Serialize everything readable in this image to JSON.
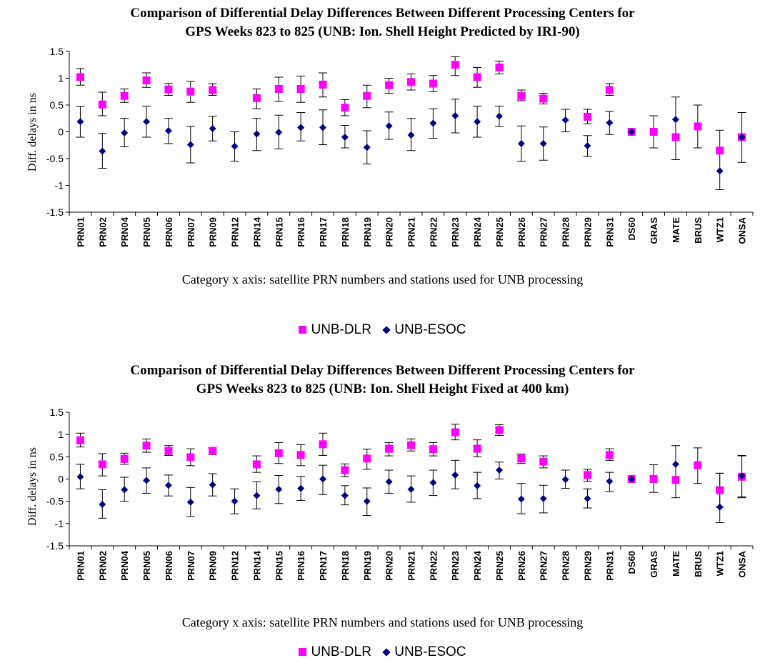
{
  "legend": {
    "series1": "UNB-DLR",
    "series2": "UNB-ESOC"
  },
  "colors": {
    "dlr": "#ff00ff",
    "esoc": "#000080",
    "axis": "#000000"
  },
  "chart_data": [
    {
      "type": "scatter",
      "title_line1": "Comparison of Differential Delay Differences Between Different Processing Centers for",
      "title_line2": "GPS Weeks 823 to 825 (UNB: Ion. Shell Height Predicted by IRI-90)",
      "xlabel": "Category x axis: satellite PRN numbers and stations used for UNB processing",
      "ylabel": "Diff. delays in ns",
      "ylim": [
        -1.5,
        1.5
      ],
      "yticks": [
        "1.5",
        "1",
        "0.5",
        "0",
        "-0.5",
        "-1",
        "-1.5"
      ],
      "grid": false,
      "legend_position": "bottom",
      "categories": [
        "PRN01",
        "PRN02",
        "PRN04",
        "PRN05",
        "PRN06",
        "PRN07",
        "PRN09",
        "PRN12",
        "PRN14",
        "PRN15",
        "PRN16",
        "PRN17",
        "PRN18",
        "PRN19",
        "PRN20",
        "PRN21",
        "PRN22",
        "PRN23",
        "PRN24",
        "PRN25",
        "PRN26",
        "PRN27",
        "PRN28",
        "PRN29",
        "PRN31",
        "DS60",
        "GRAS",
        "MATE",
        "BRUS",
        "WTZ1",
        "ONSA"
      ],
      "series": [
        {
          "name": "UNB-DLR",
          "values": [
            1.02,
            0.51,
            0.67,
            0.96,
            0.79,
            0.75,
            0.78,
            null,
            0.63,
            0.8,
            0.8,
            0.88,
            0.45,
            0.67,
            0.87,
            0.93,
            0.9,
            1.25,
            1.02,
            1.2,
            0.67,
            0.62,
            null,
            0.28,
            0.78,
            0.0,
            0.0,
            -0.1,
            0.1,
            -0.35,
            -0.1
          ],
          "err_low": [
            0.87,
            0.3,
            0.55,
            0.83,
            0.68,
            0.55,
            0.68,
            null,
            0.43,
            0.57,
            0.55,
            0.65,
            0.3,
            0.45,
            0.72,
            0.78,
            0.75,
            1.05,
            0.83,
            1.08,
            0.58,
            0.52,
            null,
            0.15,
            0.68,
            null,
            -0.3,
            -0.52,
            -0.3,
            null,
            null
          ],
          "err_high": [
            1.18,
            0.74,
            0.8,
            1.1,
            0.9,
            0.94,
            0.9,
            null,
            0.8,
            1.02,
            1.04,
            1.1,
            0.6,
            0.87,
            1.0,
            1.08,
            1.05,
            1.4,
            1.2,
            1.32,
            0.78,
            0.72,
            null,
            0.42,
            0.9,
            null,
            0.3,
            0.65,
            0.5,
            null,
            null
          ]
        },
        {
          "name": "UNB-ESOC",
          "values": [
            0.19,
            -0.36,
            -0.02,
            0.19,
            0.02,
            -0.24,
            0.06,
            -0.27,
            -0.04,
            -0.01,
            0.08,
            0.08,
            -0.1,
            -0.29,
            0.11,
            -0.06,
            0.16,
            0.3,
            0.19,
            0.29,
            -0.22,
            -0.22,
            0.22,
            -0.26,
            0.17,
            0.0,
            null,
            0.23,
            null,
            -0.73,
            -0.1
          ],
          "err_low": [
            -0.1,
            -0.68,
            -0.28,
            -0.1,
            -0.22,
            -0.58,
            -0.17,
            -0.55,
            -0.35,
            -0.32,
            -0.17,
            -0.24,
            -0.3,
            -0.6,
            -0.14,
            -0.35,
            -0.12,
            -0.02,
            -0.1,
            0.1,
            -0.55,
            -0.53,
            0.0,
            -0.46,
            -0.05,
            null,
            null,
            null,
            null,
            -1.08,
            -0.57
          ],
          "err_high": [
            0.47,
            -0.03,
            0.25,
            0.48,
            0.25,
            0.1,
            0.29,
            0.0,
            0.25,
            0.31,
            0.36,
            0.41,
            0.12,
            0.02,
            0.37,
            0.25,
            0.43,
            0.61,
            0.48,
            0.48,
            0.11,
            0.09,
            0.42,
            -0.07,
            0.38,
            null,
            null,
            null,
            null,
            0.03,
            0.36
          ]
        }
      ]
    },
    {
      "type": "scatter",
      "title_line1": "Comparison of Differential Delay Differences Between Different Processing Centers for",
      "title_line2": "GPS Weeks 823 to 825 (UNB: Ion. Shell Height Fixed at 400 km)",
      "xlabel": "Category x axis: satellite PRN numbers and stations used for UNB processing",
      "ylabel": "Diff. delays in ns",
      "ylim": [
        -1.5,
        1.5
      ],
      "yticks": [
        "1.5",
        "1",
        "0.5",
        "0",
        "-0.5",
        "-1",
        "-1.5"
      ],
      "grid": false,
      "legend_position": "bottom",
      "categories": [
        "PRN01",
        "PRN02",
        "PRN04",
        "PRN05",
        "PRN06",
        "PRN07",
        "PRN09",
        "PRN12",
        "PRN14",
        "PRN15",
        "PRN16",
        "PRN17",
        "PRN18",
        "PRN19",
        "PRN20",
        "PRN21",
        "PRN22",
        "PRN23",
        "PRN24",
        "PRN25",
        "PRN26",
        "PRN27",
        "PRN28",
        "PRN29",
        "PRN31",
        "DS60",
        "GRAS",
        "MATE",
        "BRUS",
        "WTZ1",
        "ONSA"
      ],
      "series": [
        {
          "name": "UNB-DLR",
          "values": [
            0.87,
            0.33,
            0.45,
            0.75,
            0.63,
            0.49,
            0.63,
            null,
            0.33,
            0.58,
            0.54,
            0.78,
            0.2,
            0.46,
            0.68,
            0.76,
            0.67,
            1.05,
            0.68,
            1.1,
            0.46,
            0.39,
            null,
            0.09,
            0.54,
            0.0,
            0.0,
            -0.02,
            0.31,
            -0.25,
            0.05
          ],
          "err_low": [
            0.72,
            0.07,
            0.33,
            0.6,
            0.53,
            0.3,
            0.55,
            null,
            0.15,
            0.35,
            0.3,
            0.53,
            0.05,
            0.22,
            0.52,
            0.63,
            0.52,
            0.88,
            0.5,
            0.98,
            0.35,
            0.25,
            null,
            -0.05,
            0.42,
            null,
            -0.3,
            -0.42,
            -0.1,
            -0.63,
            -0.42
          ],
          "err_high": [
            1.03,
            0.57,
            0.58,
            0.9,
            0.75,
            0.68,
            0.7,
            null,
            0.52,
            0.82,
            0.77,
            1.03,
            0.34,
            0.67,
            0.82,
            0.9,
            0.82,
            1.23,
            0.88,
            1.22,
            0.56,
            0.52,
            null,
            0.22,
            0.68,
            null,
            0.32,
            0.75,
            0.7,
            0.13,
            0.53
          ]
        },
        {
          "name": "UNB-ESOC",
          "values": [
            0.05,
            -0.57,
            -0.24,
            -0.03,
            -0.14,
            -0.52,
            -0.13,
            -0.5,
            -0.37,
            -0.23,
            -0.21,
            0.0,
            -0.37,
            -0.5,
            -0.06,
            -0.23,
            -0.08,
            0.09,
            -0.15,
            0.2,
            -0.45,
            -0.44,
            -0.01,
            -0.44,
            -0.05,
            0.0,
            null,
            0.33,
            null,
            -0.63,
            0.07
          ],
          "err_low": [
            -0.22,
            -0.88,
            -0.5,
            -0.32,
            -0.38,
            -0.84,
            -0.38,
            -0.78,
            -0.67,
            -0.55,
            -0.48,
            -0.35,
            -0.58,
            -0.82,
            -0.32,
            -0.52,
            -0.37,
            -0.22,
            -0.44,
            0.0,
            -0.78,
            -0.76,
            -0.21,
            -0.65,
            -0.28,
            null,
            null,
            null,
            null,
            -0.98,
            -0.4
          ],
          "err_high": [
            0.33,
            -0.24,
            0.04,
            0.25,
            0.09,
            -0.19,
            0.12,
            -0.22,
            -0.06,
            0.08,
            0.06,
            0.31,
            -0.15,
            -0.2,
            0.2,
            0.07,
            0.2,
            0.42,
            0.15,
            0.38,
            -0.1,
            -0.14,
            0.2,
            -0.22,
            0.15,
            null,
            null,
            null,
            null,
            0.13,
            0.52
          ]
        }
      ]
    }
  ]
}
